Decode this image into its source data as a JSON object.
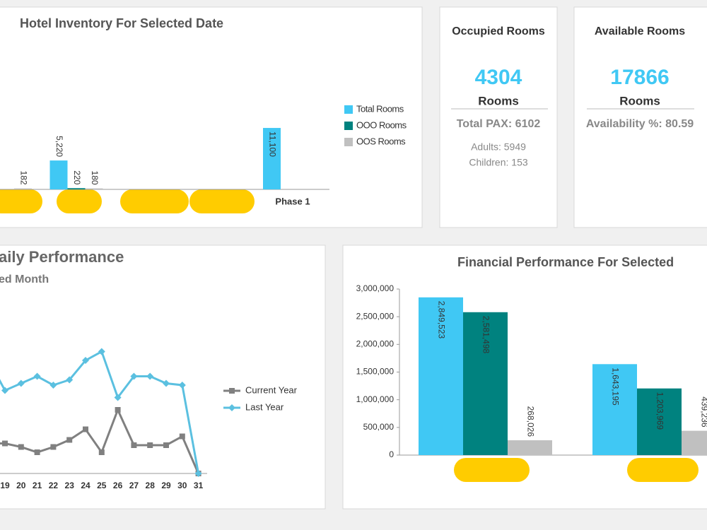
{
  "chart_data": [
    {
      "type": "bar",
      "title": "Hotel Inventory For Selected Date",
      "categories": [
        null,
        null,
        null,
        null,
        "Phase 1"
      ],
      "series": [
        {
          "name": "Total Rooms",
          "color": "#40c8f4",
          "values": [
            null,
            5220,
            null,
            null,
            11100
          ],
          "value_labels": [
            null,
            "5,220",
            null,
            null,
            "11,100"
          ]
        },
        {
          "name": "OOO Rooms",
          "color": "#00827f",
          "values": [
            null,
            220,
            null,
            null,
            null
          ]
        },
        {
          "name": "OOS Rooms",
          "color": "#c0c0c0",
          "values": [
            182,
            180,
            null,
            null,
            null
          ]
        }
      ],
      "ylim": [
        0,
        24000
      ]
    },
    {
      "type": "line",
      "title": "aily Performance",
      "subtitle": "ed Month",
      "categories": [
        null,
        "19",
        "20",
        "21",
        "22",
        "23",
        "24",
        "25",
        "26",
        "27",
        "28",
        "29",
        "30",
        "31"
      ],
      "series": [
        {
          "name": "Current Year",
          "color": "#808080",
          "values": [
            17,
            17,
            15,
            12,
            15,
            19,
            25,
            12,
            36,
            16,
            16,
            16,
            21,
            0
          ]
        },
        {
          "name": "Last Year",
          "color": "#5bc0e0",
          "values": [
            64,
            47,
            51,
            55,
            50,
            53,
            64,
            69,
            43,
            55,
            55,
            51,
            50,
            0
          ]
        }
      ],
      "ylim": [
        0,
        100
      ]
    },
    {
      "type": "bar",
      "title": "Financial Performance For Selected",
      "categories": [
        null,
        null
      ],
      "series": [
        {
          "color": "#40c8f4",
          "values": [
            2849523,
            1643195
          ],
          "value_labels": [
            "2,849,523",
            "1,643,195"
          ]
        },
        {
          "color": "#00827f",
          "values": [
            2581498,
            1203969
          ],
          "value_labels": [
            "2,581,498",
            "1,203,969"
          ]
        },
        {
          "color": "#c0c0c0",
          "values": [
            268026,
            439236
          ],
          "value_labels": [
            "268,026",
            "439,236"
          ]
        }
      ],
      "ylim": [
        0,
        3000000
      ],
      "yticks": [
        0,
        {
          "value": 500000,
          "label": "500,000"
        },
        {
          "value": 1000000,
          "label": "1,000,000"
        },
        {
          "value": 1500000,
          "label": "1,500,000"
        },
        {
          "value": 2000000,
          "label": "2,000,000"
        },
        {
          "value": 2500000,
          "label": "2,500,000"
        },
        {
          "value": 3000000,
          "label": "3,000,000"
        }
      ]
    }
  ],
  "cards": [
    {
      "title": "Occupied Rooms",
      "value": 4304,
      "unit": "Rooms",
      "summary": "Total PAX: 6102",
      "details": [
        "Adults: 5949",
        "Children: 153"
      ]
    },
    {
      "title": "Available Rooms",
      "value": 17866,
      "unit": "Rooms",
      "summary": "Availability %: 80.59"
    }
  ]
}
